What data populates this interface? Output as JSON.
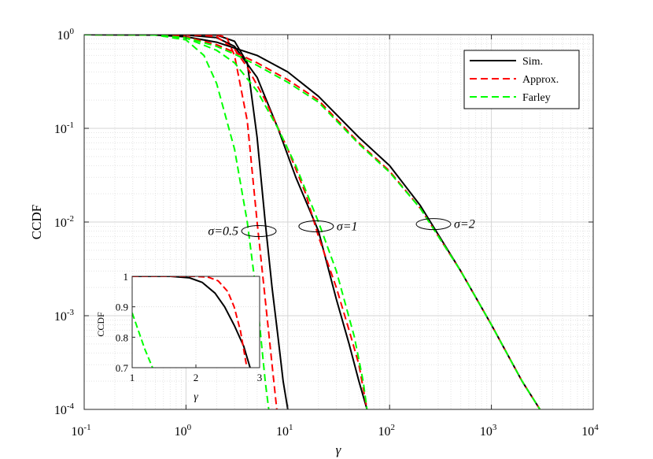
{
  "chart_data": {
    "type": "line",
    "xlabel": "γ",
    "ylabel": "CCDF",
    "x_scale": "log",
    "y_scale": "log",
    "xlim": [
      0.1,
      10000
    ],
    "ylim": [
      0.0001,
      1
    ],
    "grid": true,
    "x_ticks": [
      {
        "value": 0.1,
        "base": "10",
        "exp": "-1"
      },
      {
        "value": 1,
        "base": "10",
        "exp": "0"
      },
      {
        "value": 10,
        "base": "10",
        "exp": "1"
      },
      {
        "value": 100,
        "base": "10",
        "exp": "2"
      },
      {
        "value": 1000,
        "base": "10",
        "exp": "3"
      },
      {
        "value": 10000,
        "base": "10",
        "exp": "4"
      }
    ],
    "y_ticks": [
      {
        "value": 1,
        "base": "10",
        "exp": "0"
      },
      {
        "value": 0.1,
        "base": "10",
        "exp": "-1"
      },
      {
        "value": 0.01,
        "base": "10",
        "exp": "-2"
      },
      {
        "value": 0.001,
        "base": "10",
        "exp": "-3"
      },
      {
        "value": 0.0001,
        "base": "10",
        "exp": "-4"
      }
    ],
    "legend": {
      "placement": "top-right",
      "entries": [
        {
          "label": "Sim.",
          "color": "#000000",
          "dash": "solid"
        },
        {
          "label": "Approx.",
          "color": "#ff0000",
          "dash": "dashed"
        },
        {
          "label": "Farley",
          "color": "#00ff00",
          "dash": "dashed"
        }
      ]
    },
    "series": [
      {
        "group": "σ=0.5",
        "style": "Sim.",
        "color": "#000000",
        "dash": "solid",
        "points": [
          [
            0.1,
            1
          ],
          [
            1,
            0.999
          ],
          [
            2,
            0.99
          ],
          [
            3,
            0.85
          ],
          [
            4,
            0.5
          ],
          [
            5,
            0.08
          ],
          [
            6,
            0.01
          ],
          [
            7,
            0.002
          ],
          [
            8,
            0.0006
          ],
          [
            9,
            0.0002
          ],
          [
            10,
            0.0001
          ]
        ]
      },
      {
        "group": "σ=0.5",
        "style": "Approx.",
        "color": "#ff0000",
        "dash": "dashed",
        "points": [
          [
            0.1,
            1
          ],
          [
            1,
            0.999
          ],
          [
            2,
            0.995
          ],
          [
            2.5,
            0.94
          ],
          [
            3,
            0.6
          ],
          [
            4,
            0.12
          ],
          [
            5,
            0.01
          ],
          [
            6,
            0.0015
          ],
          [
            7,
            0.0003
          ],
          [
            7.8,
            0.0001
          ]
        ]
      },
      {
        "group": "σ=0.5",
        "style": "Farley",
        "color": "#00ff00",
        "dash": "dashed",
        "points": [
          [
            0.1,
            1
          ],
          [
            0.5,
            0.99
          ],
          [
            1,
            0.88
          ],
          [
            1.5,
            0.6
          ],
          [
            2,
            0.3
          ],
          [
            3,
            0.06
          ],
          [
            4,
            0.01
          ],
          [
            5,
            0.0015
          ],
          [
            6,
            0.0002
          ],
          [
            6.5,
            0.0001
          ]
        ]
      },
      {
        "group": "σ=1",
        "style": "Sim.",
        "color": "#000000",
        "dash": "solid",
        "points": [
          [
            0.1,
            1
          ],
          [
            1,
            0.99
          ],
          [
            2,
            0.93
          ],
          [
            3,
            0.75
          ],
          [
            5,
            0.35
          ],
          [
            8,
            0.1
          ],
          [
            12,
            0.03
          ],
          [
            20,
            0.008
          ],
          [
            30,
            0.0015
          ],
          [
            40,
            0.0005
          ],
          [
            50,
            0.0002
          ],
          [
            60,
            0.0001
          ]
        ]
      },
      {
        "group": "σ=1",
        "style": "Approx.",
        "color": "#ff0000",
        "dash": "dashed",
        "points": [
          [
            0.1,
            1
          ],
          [
            1,
            0.995
          ],
          [
            1.5,
            0.98
          ],
          [
            2,
            0.95
          ],
          [
            3,
            0.7
          ],
          [
            4,
            0.45
          ],
          [
            6,
            0.2
          ],
          [
            10,
            0.06
          ],
          [
            15,
            0.02
          ],
          [
            20,
            0.007
          ],
          [
            30,
            0.002
          ],
          [
            40,
            0.0007
          ],
          [
            50,
            0.0003
          ],
          [
            60,
            0.0001
          ]
        ]
      },
      {
        "group": "σ=1",
        "style": "Farley",
        "color": "#00ff00",
        "dash": "dashed",
        "points": [
          [
            0.1,
            1
          ],
          [
            0.5,
            0.99
          ],
          [
            1,
            0.92
          ],
          [
            2,
            0.68
          ],
          [
            3,
            0.5
          ],
          [
            5,
            0.25
          ],
          [
            8,
            0.1
          ],
          [
            12,
            0.04
          ],
          [
            20,
            0.01
          ],
          [
            30,
            0.003
          ],
          [
            45,
            0.0006
          ],
          [
            55,
            0.0002
          ],
          [
            60,
            0.0001
          ]
        ]
      },
      {
        "group": "σ=2",
        "style": "Sim.",
        "color": "#000000",
        "dash": "solid",
        "points": [
          [
            0.1,
            1
          ],
          [
            0.5,
            0.99
          ],
          [
            1,
            0.95
          ],
          [
            2,
            0.83
          ],
          [
            5,
            0.6
          ],
          [
            10,
            0.4
          ],
          [
            20,
            0.22
          ],
          [
            50,
            0.08
          ],
          [
            100,
            0.04
          ],
          [
            200,
            0.015
          ],
          [
            500,
            0.003
          ],
          [
            1000,
            0.0008
          ],
          [
            2000,
            0.0002
          ],
          [
            3000,
            0.0001
          ]
        ]
      },
      {
        "group": "σ=2",
        "style": "Approx.",
        "color": "#ff0000",
        "dash": "dashed",
        "points": [
          [
            0.1,
            1
          ],
          [
            0.5,
            0.99
          ],
          [
            1,
            0.95
          ],
          [
            2,
            0.78
          ],
          [
            3,
            0.65
          ],
          [
            5,
            0.5
          ],
          [
            10,
            0.33
          ],
          [
            20,
            0.2
          ],
          [
            50,
            0.07
          ],
          [
            100,
            0.035
          ],
          [
            200,
            0.014
          ],
          [
            500,
            0.003
          ],
          [
            1000,
            0.0008
          ],
          [
            2000,
            0.0002
          ],
          [
            3000,
            0.0001
          ]
        ]
      },
      {
        "group": "σ=2",
        "style": "Farley",
        "color": "#00ff00",
        "dash": "dashed",
        "points": [
          [
            0.1,
            1
          ],
          [
            0.5,
            0.99
          ],
          [
            1,
            0.93
          ],
          [
            2,
            0.75
          ],
          [
            3,
            0.62
          ],
          [
            5,
            0.47
          ],
          [
            10,
            0.31
          ],
          [
            20,
            0.19
          ],
          [
            50,
            0.068
          ],
          [
            100,
            0.034
          ],
          [
            200,
            0.014
          ],
          [
            500,
            0.003
          ],
          [
            1000,
            0.0008
          ],
          [
            2000,
            0.0002
          ],
          [
            3000,
            0.0001
          ]
        ]
      }
    ],
    "annotations": [
      {
        "text": "σ=0.5",
        "x": 5.2,
        "y": 0.008,
        "side": "left"
      },
      {
        "text": "σ=1",
        "x": 19,
        "y": 0.009,
        "side": "right"
      },
      {
        "text": "σ=2",
        "x": 270,
        "y": 0.0095,
        "side": "right"
      }
    ],
    "inset": {
      "xlabel": "γ",
      "ylabel": "CCDF",
      "x_scale": "linear",
      "y_scale": "linear",
      "xlim": [
        1,
        3
      ],
      "ylim": [
        0.7,
        1
      ],
      "x_ticks": [
        "1",
        "2",
        "3"
      ],
      "y_ticks": [
        "0.7",
        "0.8",
        "0.9",
        "1"
      ],
      "series": [
        {
          "style": "Sim.",
          "color": "#000000",
          "dash": "solid",
          "points": [
            [
              1,
              1
            ],
            [
              1.6,
              1
            ],
            [
              1.9,
              0.995
            ],
            [
              2.1,
              0.98
            ],
            [
              2.3,
              0.945
            ],
            [
              2.45,
              0.9
            ],
            [
              2.6,
              0.84
            ],
            [
              2.75,
              0.77
            ],
            [
              2.85,
              0.7
            ]
          ]
        },
        {
          "style": "Approx.",
          "color": "#ff0000",
          "dash": "dashed",
          "points": [
            [
              1,
              1
            ],
            [
              2,
              1
            ],
            [
              2.2,
              0.997
            ],
            [
              2.35,
              0.985
            ],
            [
              2.5,
              0.95
            ],
            [
              2.6,
              0.9
            ],
            [
              2.7,
              0.82
            ],
            [
              2.8,
              0.7
            ]
          ]
        },
        {
          "style": "Farley",
          "color": "#00ff00",
          "dash": "dashed",
          "points": [
            [
              1,
              0.88
            ],
            [
              1.1,
              0.82
            ],
            [
              1.2,
              0.76
            ],
            [
              1.32,
              0.7
            ]
          ]
        }
      ]
    }
  }
}
